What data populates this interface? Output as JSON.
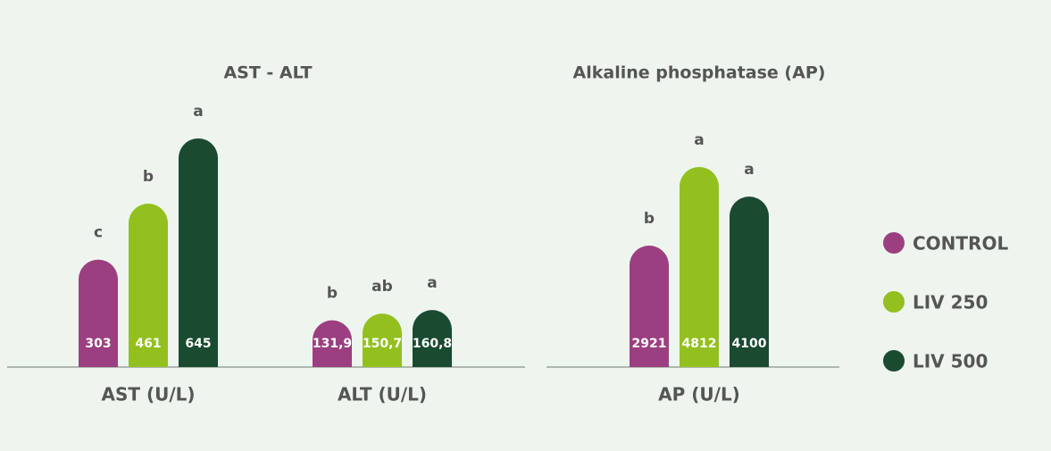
{
  "chart_data": [
    {
      "type": "bar",
      "title": "AST - ALT",
      "categories": [
        "AST (U/L)",
        "ALT (U/L)"
      ],
      "series": [
        {
          "color": "#9c3f80",
          "values": [
            303,
            131.9
          ],
          "value_labels": [
            "303",
            "131,9"
          ],
          "annotations": [
            "c",
            "b"
          ]
        },
        {
          "color": "#93c01f",
          "values": [
            461,
            150.7
          ],
          "value_labels": [
            "461",
            "150,7"
          ],
          "annotations": [
            "b",
            "ab"
          ]
        },
        {
          "color": "#1a4a30",
          "values": [
            645,
            160.8
          ],
          "value_labels": [
            "645",
            "160,8"
          ],
          "annotations": [
            "a",
            "a"
          ]
        }
      ]
    },
    {
      "type": "bar",
      "title": "Alkaline phosphatase (AP)",
      "categories": [
        "AP (U/L)"
      ],
      "series": [
        {
          "name": "CONTROL",
          "color": "#9c3f80",
          "values": [
            2921
          ],
          "annotations": [
            "b"
          ]
        },
        {
          "name": "LIV 250",
          "color": "#93c01f",
          "values": [
            4812
          ],
          "annotations": [
            "a"
          ]
        },
        {
          "name": "LIV 500",
          "color": "#1a4a30",
          "values": [
            4100
          ],
          "annotations": [
            "a"
          ]
        }
      ],
      "legend": "right"
    }
  ]
}
